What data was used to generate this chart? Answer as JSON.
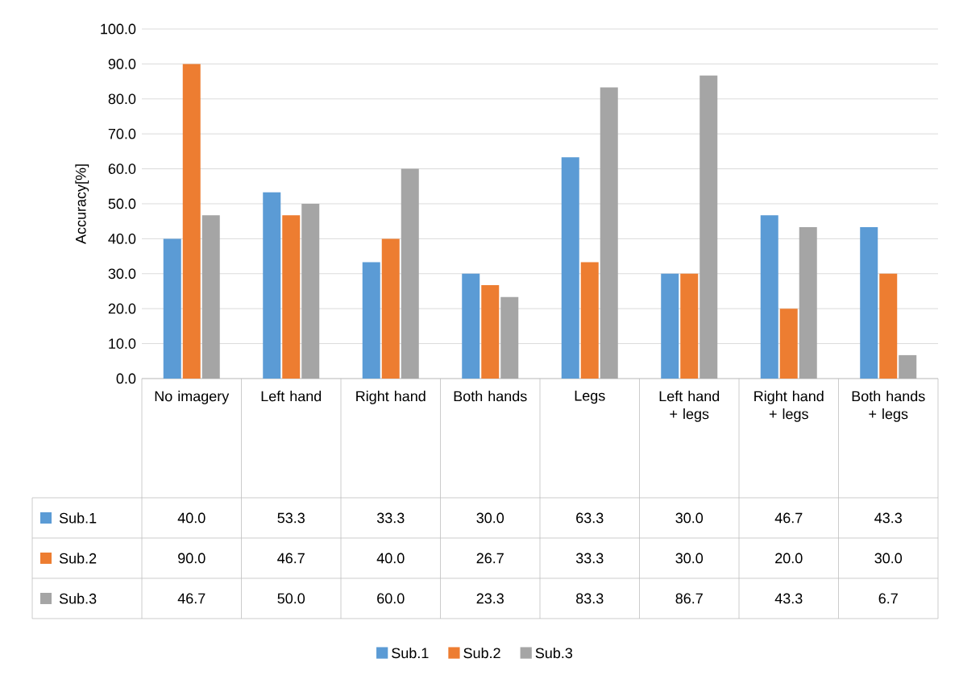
{
  "chart_data": {
    "type": "bar",
    "ylabel": "Accuracy[%]",
    "categories": [
      "No imagery",
      "Left hand",
      "Right hand",
      "Both hands",
      "Legs",
      "Left hand + legs",
      "Right hand + legs",
      "Both hands + legs"
    ],
    "series": [
      {
        "name": "Sub.1",
        "color": "#5b9bd5",
        "values": [
          40.0,
          53.3,
          33.3,
          30.0,
          63.3,
          30.0,
          46.7,
          43.3
        ],
        "value_labels": [
          "40.0",
          "53.3",
          "33.3",
          "30.0",
          "63.3",
          "30.0",
          "46.7",
          "43.3"
        ]
      },
      {
        "name": "Sub.2",
        "color": "#ed7d31",
        "values": [
          90.0,
          46.7,
          40.0,
          26.7,
          33.3,
          30.0,
          20.0,
          30.0
        ],
        "value_labels": [
          "90.0",
          "46.7",
          "40.0",
          "26.7",
          "33.3",
          "30.0",
          "20.0",
          "30.0"
        ]
      },
      {
        "name": "Sub.3",
        "color": "#a5a5a5",
        "values": [
          46.7,
          50.0,
          60.0,
          23.3,
          83.3,
          86.7,
          43.3,
          6.7
        ],
        "value_labels": [
          "46.7",
          "50.0",
          "60.0",
          "23.3",
          "83.3",
          "86.7",
          "43.3",
          "6.7"
        ]
      }
    ],
    "ylim": [
      0,
      100
    ],
    "yticks": [
      {
        "value": 0,
        "label": "0.0"
      },
      {
        "value": 10,
        "label": "10.0"
      },
      {
        "value": 20,
        "label": "20.0"
      },
      {
        "value": 30,
        "label": "30.0"
      },
      {
        "value": 40,
        "label": "40.0"
      },
      {
        "value": 50,
        "label": "50.0"
      },
      {
        "value": 60,
        "label": "60.0"
      },
      {
        "value": 70,
        "label": "70.0"
      },
      {
        "value": 80,
        "label": "80.0"
      },
      {
        "value": 90,
        "label": "90.0"
      },
      {
        "value": 100,
        "label": "100.0"
      }
    ],
    "grid": true,
    "legend": "bottom"
  }
}
